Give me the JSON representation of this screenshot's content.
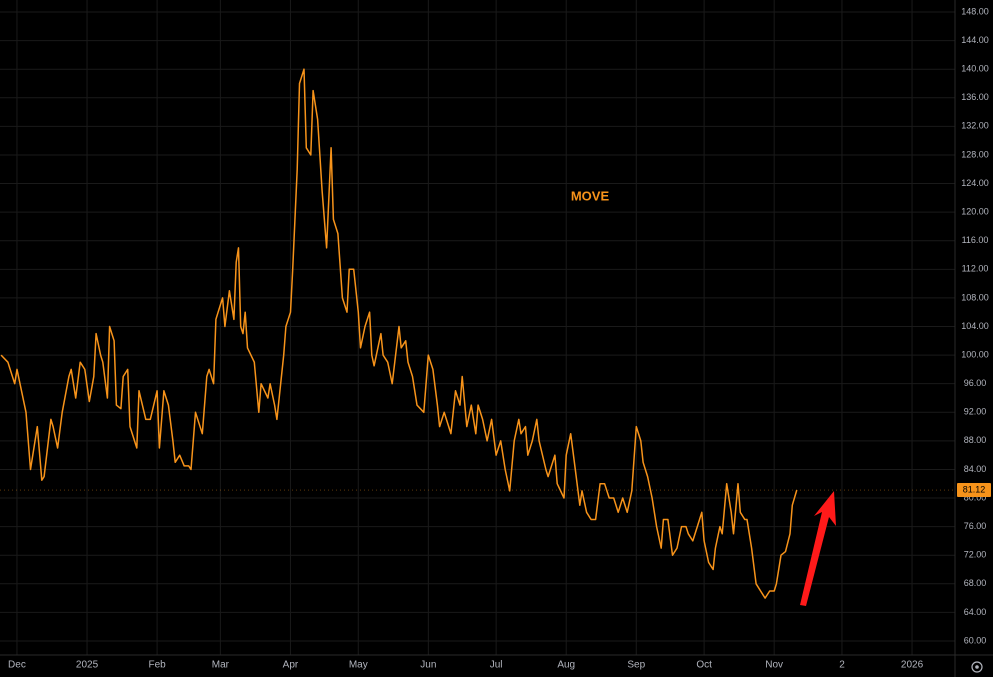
{
  "chart_data": {
    "type": "line",
    "series": [
      {
        "name": "MOVE",
        "color": "#f7931a",
        "x": [
          -7,
          -4,
          -1,
          0,
          4,
          6,
          9,
          11,
          12,
          15,
          16,
          18,
          20,
          23,
          24,
          26,
          28,
          30,
          32,
          34,
          35,
          37,
          38,
          40,
          41,
          43,
          44,
          46,
          47,
          49,
          50,
          53,
          54,
          57,
          59,
          62,
          63,
          65,
          67,
          69,
          70,
          72,
          74,
          76,
          77,
          79,
          82,
          84,
          85,
          87,
          88,
          89,
          91,
          92,
          94,
          96,
          97,
          98,
          99,
          100,
          101,
          102,
          105,
          107,
          108,
          111,
          112,
          114,
          115,
          118,
          119,
          121,
          122,
          124,
          125,
          127,
          128,
          130,
          131,
          133,
          135,
          137,
          139,
          140,
          142,
          144,
          146,
          147,
          149,
          151,
          152,
          154,
          156,
          157,
          158,
          161,
          162,
          164,
          166,
          169,
          170,
          172,
          173,
          175,
          177,
          180,
          182,
          184,
          186,
          187,
          189,
          191,
          192,
          194,
          196,
          197,
          199,
          201,
          203,
          204,
          206,
          208,
          210,
          212,
          214,
          216,
          218,
          220,
          222,
          223,
          225,
          226,
          228,
          230,
          231,
          234,
          235,
          238,
          239,
          242,
          243,
          245,
          247,
          249,
          250,
          252,
          254,
          256,
          258,
          260,
          262,
          264,
          266,
          268,
          270,
          272,
          274,
          276,
          277,
          279,
          281,
          283,
          285,
          286,
          288,
          290,
          292,
          294,
          296,
          297,
          299,
          301,
          303,
          304,
          306,
          308,
          309,
          311,
          312,
          314,
          316,
          317,
          319,
          320,
          322,
          323,
          325,
          327,
          329,
          331,
          333,
          335,
          336,
          338,
          340,
          342,
          343,
          345
        ],
        "values": [
          100,
          99,
          96,
          98,
          92,
          84,
          90,
          82.5,
          83,
          91,
          90,
          87,
          92,
          97,
          98,
          94,
          99,
          98,
          93.5,
          97,
          103,
          100,
          99,
          94,
          104,
          102,
          93,
          92.5,
          97,
          98,
          90,
          87,
          95,
          91,
          91,
          95,
          87,
          95,
          93,
          88,
          85,
          86,
          84.5,
          84.5,
          84,
          92,
          89,
          97,
          98,
          96,
          105,
          106,
          108,
          104,
          109,
          105,
          113,
          115,
          104,
          103,
          106,
          101,
          99,
          92,
          96,
          94,
          96,
          93,
          91,
          100,
          104,
          106,
          112,
          126,
          138,
          140,
          129,
          128,
          137,
          133,
          123,
          115,
          129,
          119,
          117,
          108,
          106,
          112,
          112,
          106,
          101,
          104,
          106,
          100,
          98.5,
          103,
          100,
          99,
          96,
          104,
          101,
          102,
          99,
          97,
          93,
          92,
          100,
          98,
          93,
          90,
          92,
          90,
          89,
          95,
          93,
          97,
          90,
          93,
          89,
          93,
          91,
          88,
          91,
          86,
          88,
          84,
          81,
          88,
          91,
          89,
          90,
          86,
          88,
          91,
          88,
          84,
          83,
          86,
          82,
          80,
          86,
          89,
          84,
          79,
          81,
          78,
          77,
          77,
          82,
          82,
          80,
          80,
          78,
          80,
          78,
          81,
          90,
          88,
          85,
          83,
          80,
          76,
          73,
          77,
          77,
          72,
          73,
          76,
          76,
          75,
          74,
          76,
          78,
          74,
          71,
          70,
          73,
          76,
          75,
          82,
          78,
          75,
          82,
          78,
          77,
          77,
          73,
          68,
          67,
          66,
          67,
          67,
          68,
          72,
          72.5,
          75,
          79,
          81.12
        ]
      }
    ],
    "xlim": [
      -7.5,
      415
    ],
    "xticks": [
      {
        "value": 0,
        "label": "Dec"
      },
      {
        "value": 31,
        "label": "2025"
      },
      {
        "value": 62,
        "label": "Feb"
      },
      {
        "value": 90,
        "label": "Mar"
      },
      {
        "value": 121,
        "label": "Apr"
      },
      {
        "value": 151,
        "label": "May"
      },
      {
        "value": 182,
        "label": "Jun"
      },
      {
        "value": 212,
        "label": "Jul"
      },
      {
        "value": 243,
        "label": "Aug"
      },
      {
        "value": 274,
        "label": "Sep"
      },
      {
        "value": 304,
        "label": "Oct"
      },
      {
        "value": 335,
        "label": "Nov"
      },
      {
        "value": 365,
        "label": "2"
      },
      {
        "value": 396,
        "label": "2026"
      }
    ],
    "ylim": [
      58.04,
      149.68
    ],
    "yticks": [
      {
        "value": 60,
        "label": "60.00"
      },
      {
        "value": 64,
        "label": "64.00"
      },
      {
        "value": 68,
        "label": "68.00"
      },
      {
        "value": 72,
        "label": "72.00"
      },
      {
        "value": 76,
        "label": "76.00"
      },
      {
        "value": 80,
        "label": "80.00"
      },
      {
        "value": 84,
        "label": "84.00"
      },
      {
        "value": 88,
        "label": "88.00"
      },
      {
        "value": 92,
        "label": "92.00"
      },
      {
        "value": 96,
        "label": "96.00"
      },
      {
        "value": 100,
        "label": "100.00"
      },
      {
        "value": 104,
        "label": "104.00"
      },
      {
        "value": 108,
        "label": "108.00"
      },
      {
        "value": 112,
        "label": "112.00"
      },
      {
        "value": 116,
        "label": "116.00"
      },
      {
        "value": 120,
        "label": "120.00"
      },
      {
        "value": 124,
        "label": "124.00"
      },
      {
        "value": 128,
        "label": "128.00"
      },
      {
        "value": 132,
        "label": "132.00"
      },
      {
        "value": 136,
        "label": "136.00"
      },
      {
        "value": 140,
        "label": "140.00"
      },
      {
        "value": 144,
        "label": "144.00"
      },
      {
        "value": 148,
        "label": "148.00"
      }
    ],
    "grid": true
  }
}
